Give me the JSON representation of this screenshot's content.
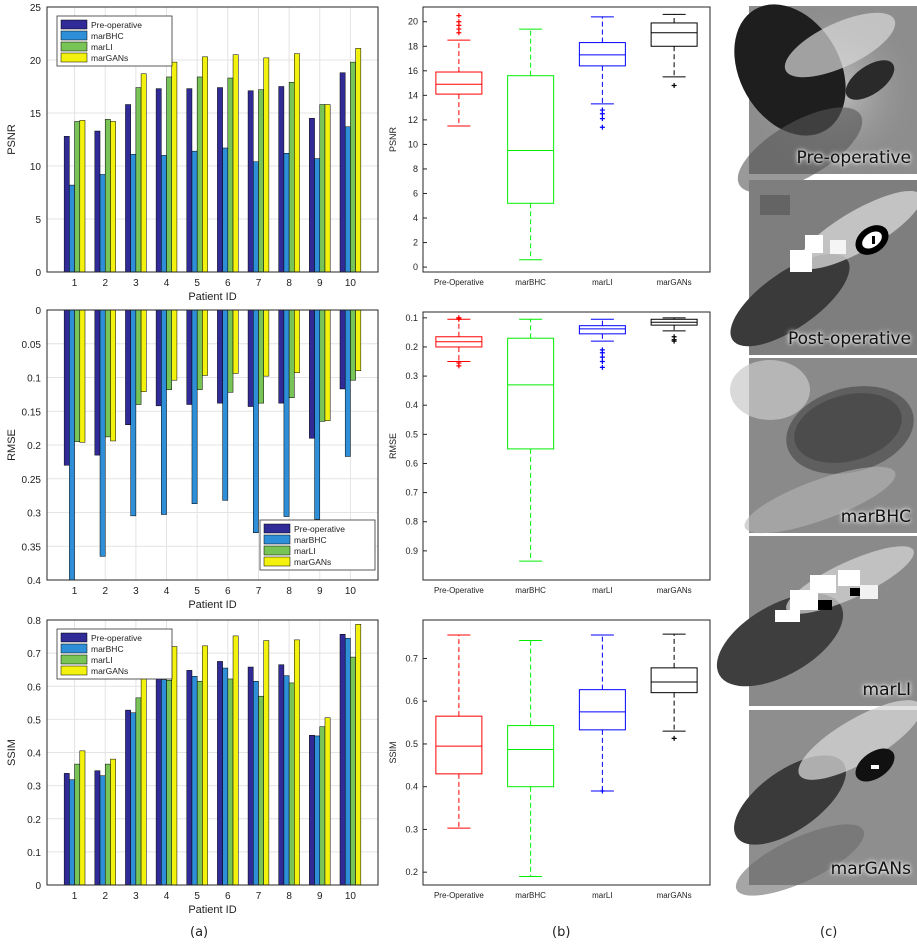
{
  "chart_data": [
    {
      "type": "bar",
      "ylabel": "PSNR",
      "xlabel": "Patient ID",
      "ylim": [
        0,
        25
      ],
      "yticks": [
        0,
        5,
        10,
        15,
        20,
        25
      ],
      "categories": [
        "1",
        "2",
        "3",
        "4",
        "5",
        "6",
        "7",
        "8",
        "9",
        "10"
      ],
      "legend_position": "top-left",
      "series": [
        {
          "name": "Pre-operative",
          "values": [
            12.8,
            13.3,
            15.8,
            17.3,
            17.3,
            17.4,
            17.1,
            17.5,
            14.5,
            18.8
          ]
        },
        {
          "name": "marBHC",
          "values": [
            8.2,
            9.2,
            11.1,
            11.0,
            11.4,
            11.7,
            10.4,
            11.2,
            10.7,
            13.7
          ]
        },
        {
          "name": "marLI",
          "values": [
            14.2,
            14.4,
            17.4,
            18.4,
            18.4,
            18.3,
            17.2,
            17.9,
            15.8,
            19.8
          ]
        },
        {
          "name": "marGANs",
          "values": [
            14.3,
            14.2,
            18.7,
            19.8,
            20.3,
            20.5,
            20.2,
            20.6,
            15.8,
            21.1
          ]
        }
      ]
    },
    {
      "type": "bar",
      "ylabel": "RMSE",
      "xlabel": "Patient ID",
      "ylim": [
        0,
        0.4
      ],
      "yticks": [
        0,
        0.05,
        0.1,
        0.15,
        0.2,
        0.25,
        0.3,
        0.35,
        0.4
      ],
      "reversed_y": true,
      "categories": [
        "1",
        "2",
        "3",
        "4",
        "5",
        "6",
        "7",
        "8",
        "9",
        "10"
      ],
      "legend_position": "bottom-right",
      "series": [
        {
          "name": "Pre-operative",
          "values": [
            0.23,
            0.215,
            0.17,
            0.142,
            0.14,
            0.138,
            0.143,
            0.138,
            0.19,
            0.117
          ]
        },
        {
          "name": "marBHC",
          "values": [
            0.4,
            0.365,
            0.305,
            0.303,
            0.287,
            0.282,
            0.33,
            0.306,
            0.31,
            0.217
          ]
        },
        {
          "name": "marLI",
          "values": [
            0.195,
            0.188,
            0.14,
            0.118,
            0.118,
            0.122,
            0.138,
            0.13,
            0.165,
            0.104
          ]
        },
        {
          "name": "marGANs",
          "values": [
            0.196,
            0.194,
            0.121,
            0.104,
            0.097,
            0.094,
            0.098,
            0.093,
            0.164,
            0.09
          ]
        }
      ]
    },
    {
      "type": "bar",
      "ylabel": "SSIM",
      "xlabel": "Patient ID",
      "ylim": [
        0,
        0.8
      ],
      "yticks": [
        0,
        0.1,
        0.2,
        0.3,
        0.4,
        0.5,
        0.6,
        0.7,
        0.8
      ],
      "categories": [
        "1",
        "2",
        "3",
        "4",
        "5",
        "6",
        "7",
        "8",
        "9",
        "10"
      ],
      "legend_position": "top-left",
      "series": [
        {
          "name": "Pre-operative",
          "values": [
            0.337,
            0.345,
            0.528,
            0.65,
            0.648,
            0.675,
            0.658,
            0.665,
            0.452,
            0.757
          ]
        },
        {
          "name": "marBHC",
          "values": [
            0.318,
            0.33,
            0.52,
            0.62,
            0.63,
            0.655,
            0.615,
            0.632,
            0.45,
            0.745
          ]
        },
        {
          "name": "marLI",
          "values": [
            0.365,
            0.365,
            0.565,
            0.618,
            0.615,
            0.622,
            0.57,
            0.61,
            0.478,
            0.688
          ]
        },
        {
          "name": "marGANs",
          "values": [
            0.405,
            0.38,
            0.625,
            0.72,
            0.722,
            0.752,
            0.738,
            0.74,
            0.505,
            0.787
          ]
        }
      ]
    },
    {
      "type": "box",
      "ylabel": "PSNR",
      "ylim": [
        -0.4,
        21.2
      ],
      "yticks": [
        0,
        2,
        4,
        6,
        8,
        10,
        12,
        14,
        16,
        18,
        20
      ],
      "categories": [
        "Pre-Operative",
        "marBHC",
        "marLI",
        "marGANs"
      ],
      "colors": [
        "#ff0000",
        "#00ee00",
        "#0000ff",
        "#000000"
      ],
      "boxes": [
        {
          "min": 11.5,
          "q1": 14.1,
          "median": 14.9,
          "q3": 15.9,
          "max": 18.5,
          "outliers": [
            19.1,
            19.4,
            19.7,
            20.0,
            20.5
          ]
        },
        {
          "min": 0.6,
          "q1": 5.2,
          "median": 9.5,
          "q3": 15.6,
          "max": 19.4,
          "outliers": []
        },
        {
          "min": 13.3,
          "q1": 16.4,
          "median": 17.3,
          "q3": 18.3,
          "max": 20.4,
          "outliers": [
            11.4,
            12.1,
            12.5,
            12.8
          ]
        },
        {
          "min": 15.5,
          "q1": 18.0,
          "median": 19.1,
          "q3": 19.9,
          "max": 20.6,
          "outliers": [
            14.8
          ]
        }
      ]
    },
    {
      "type": "box",
      "ylabel": "RMSE",
      "ylim": [
        0.08,
        1.0
      ],
      "yticks": [
        0.1,
        0.2,
        0.3,
        0.4,
        0.5,
        0.6,
        0.7,
        0.8,
        0.9
      ],
      "reversed_y": true,
      "categories": [
        "Pre-Operative",
        "marBHC",
        "marLI",
        "marGANs"
      ],
      "colors": [
        "#ff0000",
        "#00ee00",
        "#0000ff",
        "#000000"
      ],
      "boxes": [
        {
          "min": 0.105,
          "q1": 0.165,
          "median": 0.182,
          "q3": 0.2,
          "max": 0.25,
          "outliers": [
            0.1,
            0.1,
            0.105,
            0.255,
            0.265
          ]
        },
        {
          "min": 0.105,
          "q1": 0.17,
          "median": 0.33,
          "q3": 0.55,
          "max": 0.935,
          "outliers": []
        },
        {
          "min": 0.105,
          "q1": 0.127,
          "median": 0.138,
          "q3": 0.155,
          "max": 0.18,
          "outliers": [
            0.21,
            0.22,
            0.235,
            0.25,
            0.27
          ]
        },
        {
          "min": 0.1,
          "q1": 0.105,
          "median": 0.115,
          "q3": 0.125,
          "max": 0.145,
          "outliers": [
            0.165,
            0.175,
            0.18
          ]
        }
      ]
    },
    {
      "type": "box",
      "ylabel": "SSIM",
      "ylim": [
        0.17,
        0.79
      ],
      "yticks": [
        0.2,
        0.3,
        0.4,
        0.5,
        0.6,
        0.7
      ],
      "categories": [
        "Pre-Operative",
        "marBHC",
        "marLI",
        "marGANs"
      ],
      "colors": [
        "#ff0000",
        "#00ee00",
        "#0000ff",
        "#000000"
      ],
      "boxes": [
        {
          "min": 0.303,
          "q1": 0.43,
          "median": 0.495,
          "q3": 0.565,
          "max": 0.755,
          "outliers": []
        },
        {
          "min": 0.19,
          "q1": 0.4,
          "median": 0.487,
          "q3": 0.543,
          "max": 0.742,
          "outliers": []
        },
        {
          "min": 0.39,
          "q1": 0.533,
          "median": 0.575,
          "q3": 0.627,
          "max": 0.755,
          "outliers": [
            0.39
          ]
        },
        {
          "min": 0.53,
          "q1": 0.62,
          "median": 0.645,
          "q3": 0.678,
          "max": 0.757,
          "outliers": [
            0.513
          ]
        }
      ]
    }
  ],
  "colors": {
    "pre_operative": "#302b96",
    "marbhc": "#2e8fd8",
    "marli": "#78c456",
    "margans": "#f2f20e"
  },
  "thumbnails": [
    {
      "label": "Pre-operative",
      "icon": "ct-slice-pre-operative"
    },
    {
      "label": "Post-operative",
      "icon": "ct-slice-post-operative"
    },
    {
      "label": "marBHC",
      "icon": "ct-slice-marbhc"
    },
    {
      "label": "marLI",
      "icon": "ct-slice-marli"
    },
    {
      "label": "marGANs",
      "icon": "ct-slice-margans"
    }
  ],
  "panel_labels": [
    "(a)",
    "(b)",
    "(c)"
  ]
}
